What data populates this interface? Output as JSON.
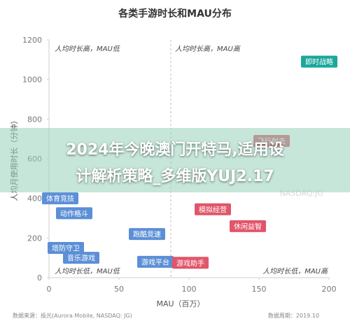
{
  "chart_data": {
    "type": "scatter",
    "title": "各类手游时长和MAU分布",
    "xlabel": "MAU（百万）",
    "ylabel": "人均月使用时长（分钟）",
    "xlim": [
      0,
      200
    ],
    "ylim": [
      0,
      1200
    ],
    "x_ticks": [
      "0",
      "50",
      "100",
      "150",
      "200"
    ],
    "y_ticks": [
      "0",
      "200",
      "400",
      "600",
      "800",
      "1000",
      "1200"
    ],
    "divider_x": 87,
    "quadrants": {
      "top_left": "人均时长高，MAU低",
      "top_right": "人均时长高，MAU高",
      "bottom_left": "人均时长低，MAU低",
      "bottom_right": "人均时长低，MAU高"
    },
    "grid": false,
    "points": [
      {
        "label": "即时战略",
        "x": 193,
        "y": 1090,
        "color": "#1aa89a"
      },
      {
        "label": "飞行射击",
        "x": 159,
        "y": 690,
        "color": "#e0566a"
      },
      {
        "label": "体育竞技",
        "x": 8,
        "y": 400,
        "color": "#5b8fd6"
      },
      {
        "label": "动作格斗",
        "x": 18,
        "y": 325,
        "color": "#5b8fd6"
      },
      {
        "label": "模拟经营",
        "x": 117,
        "y": 345,
        "color": "#e0566a"
      },
      {
        "label": "休闲益智",
        "x": 142,
        "y": 260,
        "color": "#e0566a"
      },
      {
        "label": "跑酷竞速",
        "x": 70,
        "y": 220,
        "color": "#5b8fd6"
      },
      {
        "label": "塔防守卫",
        "x": 12,
        "y": 150,
        "color": "#5b8fd6"
      },
      {
        "label": "音乐游戏",
        "x": 23,
        "y": 100,
        "color": "#5b8fd6"
      },
      {
        "label": "游戏平台",
        "x": 76,
        "y": 80,
        "color": "#5b8fd6"
      },
      {
        "label": "游戏助手",
        "x": 101,
        "y": 75,
        "color": "#e0566a"
      }
    ]
  },
  "banner": {
    "line1": "2024年今晚澳门开特马,适用设",
    "line2": "计解析策略_多维版YUJ2.17"
  },
  "footer": {
    "source": "数据来源：极光(Aurora Mobile, NASDAQ: JG)",
    "date": "数据周期：2019.10"
  },
  "watermark": {
    "text": "极光",
    "sub": "NASDAQ:JG"
  }
}
